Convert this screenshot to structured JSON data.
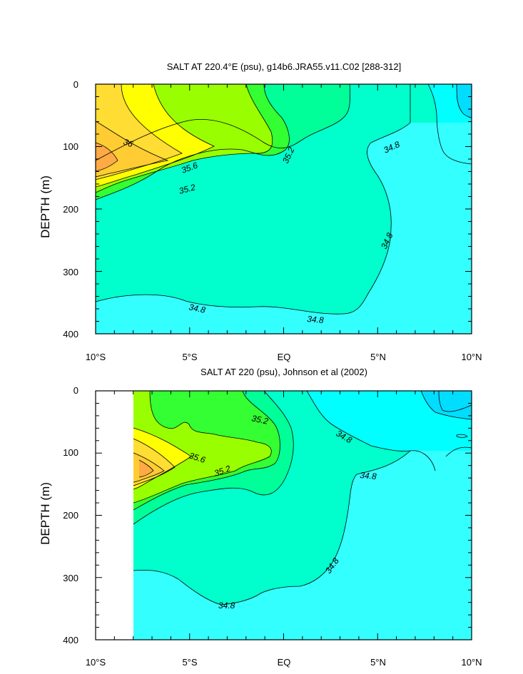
{
  "colors": {
    "c34_6": "#00ffff",
    "c34_6b": "#33ffff",
    "c34_8": "#00ffcc",
    "c35_0": "#00ff99",
    "c35_2": "#33ff33",
    "c35_4": "#99ff00",
    "c35_6": "#ffff00",
    "c35_8": "#ffdd33",
    "c36_0": "#ffcc33",
    "c36_2": "#ffaa44",
    "c34_4": "#00ddff"
  },
  "chart_data": [
    {
      "type": "contour",
      "title": "SALT AT 220.4°E (psu), g14b6.JRA55.v11.C02 [288-312]",
      "ylabel": "DEPTH (m)",
      "xlim": [
        -10,
        10
      ],
      "ylim": [
        400,
        0
      ],
      "x_ticks": [
        "10°S",
        "5°S",
        "EQ",
        "5°N",
        "10°N"
      ],
      "y_ticks": [
        "0",
        "100",
        "200",
        "300",
        "400"
      ],
      "contour_labels": [
        "36",
        "35.6",
        "35.2",
        "35.2",
        "34.8",
        "34.8",
        "34.8",
        "34.8"
      ]
    },
    {
      "type": "contour",
      "title": "SALT AT 220 (psu), Johnson et al (2002)",
      "ylabel": "DEPTH (m)",
      "xlim": [
        -10,
        10
      ],
      "ylim": [
        400,
        0
      ],
      "x_ticks": [
        "10°S",
        "5°S",
        "EQ",
        "5°N",
        "10°N"
      ],
      "y_ticks": [
        "0",
        "100",
        "200",
        "300",
        "400"
      ],
      "contour_labels": [
        "35.2",
        "35.6",
        "35.2",
        "34.8",
        "34.8",
        "34.8",
        "34.8"
      ]
    }
  ]
}
